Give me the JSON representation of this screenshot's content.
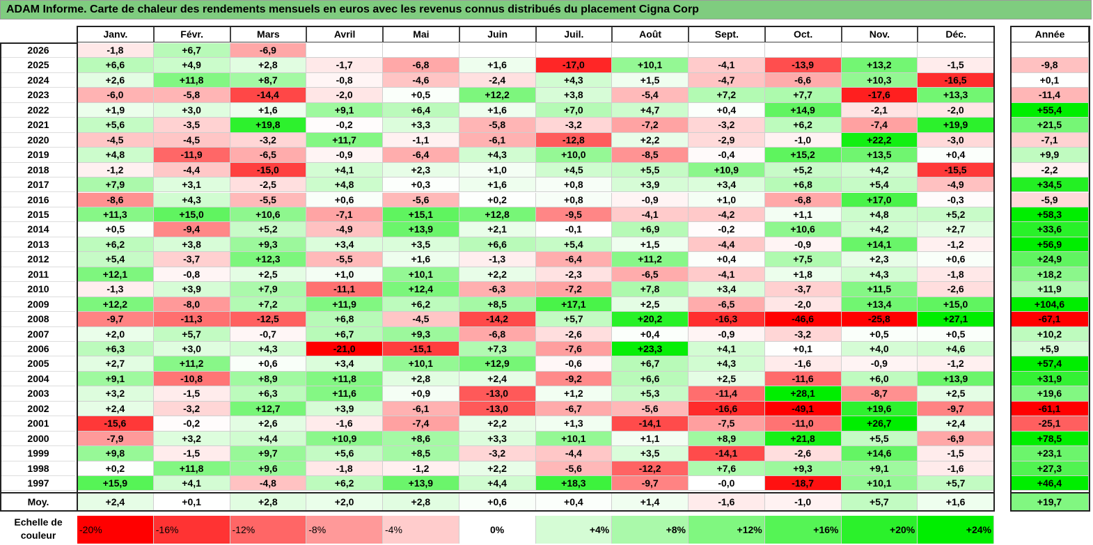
{
  "title": "ADAM Informe. Carte de chaleur des rendements mensuels en euros avec les revenus connus distribués du placement Cigna Corp",
  "months": [
    "Janv.",
    "Févr.",
    "Mars",
    "Avril",
    "Mai",
    "Juin",
    "Juil.",
    "Août",
    "Sept.",
    "Oct.",
    "Nov.",
    "Déc."
  ],
  "year_header": "Année",
  "avg_label": "Moy.",
  "scale_label": "Echelle de couleur",
  "scale_steps": [
    "-20%",
    "-16%",
    "-12%",
    "-8%",
    "-4%",
    "0%",
    "+4%",
    "+8%",
    "+12%",
    "+16%",
    "+20%",
    "+24%"
  ],
  "colors": {
    "negative": "#ff0000",
    "positive": "#00ee00",
    "neutral": "#ffffff",
    "title_bg": "#7fcc7f"
  },
  "chart_data": {
    "type": "heatmap",
    "title": "ADAM Informe. Carte de chaleur des rendements mensuels en euros avec les revenus connus distribués du placement Cigna Corp",
    "columns": [
      "Janv.",
      "Févr.",
      "Mars",
      "Avril",
      "Mai",
      "Juin",
      "Juil.",
      "Août",
      "Sept.",
      "Oct.",
      "Nov.",
      "Déc.",
      "Année"
    ],
    "rows": [
      {
        "label": "2026",
        "values": [
          "-1,8",
          "+6,7",
          "-6,9",
          "",
          "",
          "",
          "",
          "",
          "",
          "",
          "",
          "",
          ""
        ]
      },
      {
        "label": "2025",
        "values": [
          "+6,6",
          "+4,9",
          "+2,8",
          "-1,7",
          "-6,8",
          "+1,6",
          "-17,0",
          "+10,1",
          "-4,1",
          "-13,9",
          "+13,2",
          "-1,5",
          "-9,8"
        ]
      },
      {
        "label": "2024",
        "values": [
          "+2,6",
          "+11,8",
          "+8,7",
          "-0,8",
          "-4,6",
          "-2,4",
          "+4,3",
          "+1,5",
          "-4,7",
          "-6,6",
          "+10,3",
          "-16,5",
          "+0,1"
        ]
      },
      {
        "label": "2023",
        "values": [
          "-6,0",
          "-5,8",
          "-14,4",
          "-2,0",
          "+0,5",
          "+12,2",
          "+3,8",
          "-5,4",
          "+7,2",
          "+7,7",
          "-17,6",
          "+13,3",
          "-11,4"
        ]
      },
      {
        "label": "2022",
        "values": [
          "+1,9",
          "+3,0",
          "+1,6",
          "+9,1",
          "+6,4",
          "+1,6",
          "+7,0",
          "+4,7",
          "+0,4",
          "+14,9",
          "-2,1",
          "-2,0",
          "+55,4"
        ]
      },
      {
        "label": "2021",
        "values": [
          "+5,6",
          "-3,5",
          "+19,8",
          "-0,2",
          "+3,3",
          "-5,8",
          "-3,2",
          "-7,2",
          "-3,2",
          "+6,2",
          "-7,4",
          "+19,9",
          "+21,5"
        ]
      },
      {
        "label": "2020",
        "values": [
          "-4,5",
          "-4,5",
          "-3,2",
          "+11,7",
          "-1,1",
          "-6,1",
          "-12,8",
          "+2,2",
          "-2,9",
          "-1,0",
          "+22,2",
          "-3,0",
          "-7,1"
        ]
      },
      {
        "label": "2019",
        "values": [
          "+4,8",
          "-11,9",
          "-6,5",
          "-0,9",
          "-6,4",
          "+4,3",
          "+10,0",
          "-8,5",
          "-0,4",
          "+15,2",
          "+13,5",
          "+0,4",
          "+9,9"
        ]
      },
      {
        "label": "2018",
        "values": [
          "-1,2",
          "-4,4",
          "-15,0",
          "+4,1",
          "+2,3",
          "+1,0",
          "+4,5",
          "+5,5",
          "+10,9",
          "+5,2",
          "+4,2",
          "-15,5",
          "-2,2"
        ]
      },
      {
        "label": "2017",
        "values": [
          "+7,9",
          "+3,1",
          "-2,5",
          "+4,8",
          "+0,3",
          "+1,6",
          "+0,8",
          "+3,9",
          "+3,4",
          "+6,8",
          "+5,4",
          "-4,9",
          "+34,5"
        ]
      },
      {
        "label": "2016",
        "values": [
          "-8,6",
          "+4,3",
          "-5,5",
          "+0,6",
          "-5,6",
          "+0,2",
          "+0,8",
          "-0,9",
          "+1,0",
          "-6,8",
          "+17,0",
          "-0,3",
          "-5,9"
        ]
      },
      {
        "label": "2015",
        "values": [
          "+11,3",
          "+15,0",
          "+10,6",
          "-7,1",
          "+15,1",
          "+12,8",
          "-9,5",
          "-4,1",
          "-4,2",
          "+1,1",
          "+4,8",
          "+5,2",
          "+58,3"
        ]
      },
      {
        "label": "2014",
        "values": [
          "+0,5",
          "-9,4",
          "+5,2",
          "-4,9",
          "+13,9",
          "+2,1",
          "-0,1",
          "+6,9",
          "-0,2",
          "+10,6",
          "+4,2",
          "+2,7",
          "+33,6"
        ]
      },
      {
        "label": "2013",
        "values": [
          "+6,2",
          "+3,8",
          "+9,3",
          "+3,4",
          "+3,5",
          "+6,6",
          "+5,4",
          "+1,5",
          "-4,4",
          "-0,9",
          "+14,1",
          "-1,2",
          "+56,9"
        ]
      },
      {
        "label": "2012",
        "values": [
          "+5,4",
          "-3,7",
          "+12,3",
          "-5,5",
          "+1,6",
          "-1,3",
          "-6,4",
          "+11,2",
          "+0,4",
          "+7,5",
          "+2,3",
          "+0,6",
          "+24,9"
        ]
      },
      {
        "label": "2011",
        "values": [
          "+12,1",
          "-0,8",
          "+2,5",
          "+1,0",
          "+10,1",
          "+2,2",
          "-2,3",
          "-6,5",
          "-4,1",
          "+1,8",
          "+4,3",
          "-1,8",
          "+18,2"
        ]
      },
      {
        "label": "2010",
        "values": [
          "-1,3",
          "+3,9",
          "+7,9",
          "-11,1",
          "+12,4",
          "-6,3",
          "-7,2",
          "+7,8",
          "+3,4",
          "-3,7",
          "+11,5",
          "-2,6",
          "+11,9"
        ]
      },
      {
        "label": "2009",
        "values": [
          "+12,2",
          "-8,0",
          "+7,2",
          "+11,9",
          "+6,2",
          "+8,5",
          "+17,1",
          "+2,5",
          "-6,5",
          "-2,0",
          "+13,4",
          "+15,0",
          "+104,6"
        ]
      },
      {
        "label": "2008",
        "values": [
          "-9,7",
          "-11,3",
          "-12,5",
          "+6,8",
          "-4,5",
          "-14,2",
          "+5,7",
          "+20,2",
          "-16,3",
          "-46,6",
          "-25,8",
          "+27,1",
          "-67,1"
        ]
      },
      {
        "label": "2007",
        "values": [
          "+2,0",
          "+5,7",
          "-0,7",
          "+6,7",
          "+9,3",
          "-6,8",
          "-2,6",
          "+0,4",
          "-0,9",
          "-3,2",
          "+0,5",
          "+0,5",
          "+10,2"
        ]
      },
      {
        "label": "2006",
        "values": [
          "+6,3",
          "+3,0",
          "+4,3",
          "-21,0",
          "-15,1",
          "+7,3",
          "-7,6",
          "+23,3",
          "+4,1",
          "+0,1",
          "+4,0",
          "+4,6",
          "+5,9"
        ]
      },
      {
        "label": "2005",
        "values": [
          "+2,7",
          "+11,2",
          "+0,6",
          "+3,4",
          "+10,1",
          "+12,9",
          "-0,6",
          "+6,7",
          "+4,3",
          "-1,6",
          "-0,9",
          "-1,2",
          "+57,4"
        ]
      },
      {
        "label": "2004",
        "values": [
          "+9,1",
          "-10,8",
          "+8,9",
          "+11,8",
          "+2,8",
          "+2,4",
          "-9,2",
          "+6,6",
          "+2,5",
          "-11,6",
          "+6,0",
          "+13,9",
          "+31,9"
        ]
      },
      {
        "label": "2003",
        "values": [
          "+3,2",
          "-1,5",
          "+6,3",
          "+11,6",
          "+0,9",
          "-13,0",
          "+1,2",
          "+5,3",
          "-11,4",
          "+28,1",
          "-8,7",
          "+2,5",
          "+19,6"
        ]
      },
      {
        "label": "2002",
        "values": [
          "+2,4",
          "-3,2",
          "+12,7",
          "+3,9",
          "-6,1",
          "-13,0",
          "-6,7",
          "-5,6",
          "-16,6",
          "-49,1",
          "+19,6",
          "-9,7",
          "-61,1"
        ]
      },
      {
        "label": "2001",
        "values": [
          "-15,6",
          "-0,2",
          "+2,6",
          "-1,6",
          "-7,4",
          "+2,2",
          "+1,3",
          "-14,1",
          "-7,5",
          "-11,0",
          "+26,7",
          "+2,4",
          "-25,1"
        ]
      },
      {
        "label": "2000",
        "values": [
          "-7,9",
          "+3,2",
          "+4,4",
          "+10,9",
          "+8,6",
          "+3,3",
          "+10,1",
          "+1,1",
          "+8,9",
          "+21,8",
          "+5,5",
          "-6,9",
          "+78,5"
        ]
      },
      {
        "label": "1999",
        "values": [
          "+9,8",
          "-1,5",
          "+9,7",
          "+5,6",
          "+8,5",
          "-3,2",
          "-4,4",
          "+3,5",
          "-14,1",
          "-2,6",
          "+14,6",
          "-1,5",
          "+23,1"
        ]
      },
      {
        "label": "1998",
        "values": [
          "+0,2",
          "+11,8",
          "+9,6",
          "-1,8",
          "-1,2",
          "+2,2",
          "-5,6",
          "-12,2",
          "+7,6",
          "+9,3",
          "+9,1",
          "-1,6",
          "+27,3"
        ]
      },
      {
        "label": "1997",
        "values": [
          "+15,9",
          "+4,1",
          "-4,8",
          "+6,2",
          "+13,9",
          "+4,4",
          "+18,3",
          "-9,7",
          "-0,0",
          "-18,7",
          "+10,1",
          "+5,7",
          "+46,4"
        ]
      }
    ],
    "average": {
      "label": "Moy.",
      "values": [
        "+2,4",
        "+0,1",
        "+2,8",
        "+2,0",
        "+2,8",
        "+0,6",
        "+0,4",
        "+1,4",
        "-1,6",
        "-1,0",
        "+5,7",
        "+1,6",
        "+19,7"
      ]
    },
    "color_scale": {
      "min": -20,
      "max": 24,
      "midpoint": 0
    }
  }
}
